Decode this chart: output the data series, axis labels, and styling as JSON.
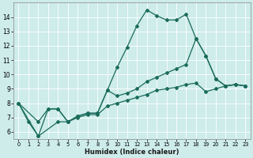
{
  "xlabel": "Humidex (Indice chaleur)",
  "bg_color": "#cdecea",
  "grid_color": "#ffffff",
  "line_color": "#1a6b5a",
  "xlim": [
    -0.5,
    23.5
  ],
  "ylim": [
    5.5,
    15.0
  ],
  "yticks": [
    6,
    7,
    8,
    9,
    10,
    11,
    12,
    13,
    14
  ],
  "xticks": [
    0,
    1,
    2,
    3,
    4,
    5,
    6,
    7,
    8,
    9,
    10,
    11,
    12,
    13,
    14,
    15,
    16,
    17,
    18,
    19,
    20,
    21,
    22,
    23
  ],
  "line1_x": [
    0,
    1,
    2,
    3,
    4,
    5,
    6,
    7,
    8,
    9,
    10,
    11,
    12,
    13,
    14,
    15,
    16,
    17,
    18,
    19,
    20,
    21,
    22,
    23
  ],
  "line1_y": [
    8.0,
    6.7,
    5.7,
    7.6,
    7.6,
    6.7,
    7.1,
    7.3,
    7.3,
    8.9,
    10.5,
    11.9,
    13.4,
    14.5,
    14.1,
    13.8,
    13.8,
    14.2,
    12.5,
    11.3,
    9.7,
    9.2,
    9.3,
    9.2
  ],
  "line2_x": [
    0,
    2,
    3,
    4,
    5,
    6,
    7,
    8,
    9,
    10,
    11,
    12,
    13,
    14,
    15,
    16,
    17,
    18,
    19,
    20,
    21,
    22,
    23
  ],
  "line2_y": [
    8.0,
    6.7,
    7.6,
    7.6,
    6.7,
    7.1,
    7.3,
    7.3,
    8.9,
    8.5,
    8.7,
    9.0,
    9.5,
    9.8,
    10.1,
    10.4,
    10.7,
    12.5,
    11.3,
    9.7,
    9.2,
    9.3,
    9.2
  ],
  "line3_x": [
    0,
    2,
    4,
    5,
    6,
    7,
    8,
    9,
    10,
    11,
    12,
    13,
    14,
    15,
    16,
    17,
    18,
    19,
    20,
    21,
    22,
    23
  ],
  "line3_y": [
    8.0,
    5.7,
    6.7,
    6.7,
    7.0,
    7.2,
    7.2,
    7.8,
    8.0,
    8.2,
    8.4,
    8.6,
    8.9,
    9.0,
    9.1,
    9.3,
    9.4,
    8.8,
    9.0,
    9.2,
    9.3,
    9.2
  ]
}
